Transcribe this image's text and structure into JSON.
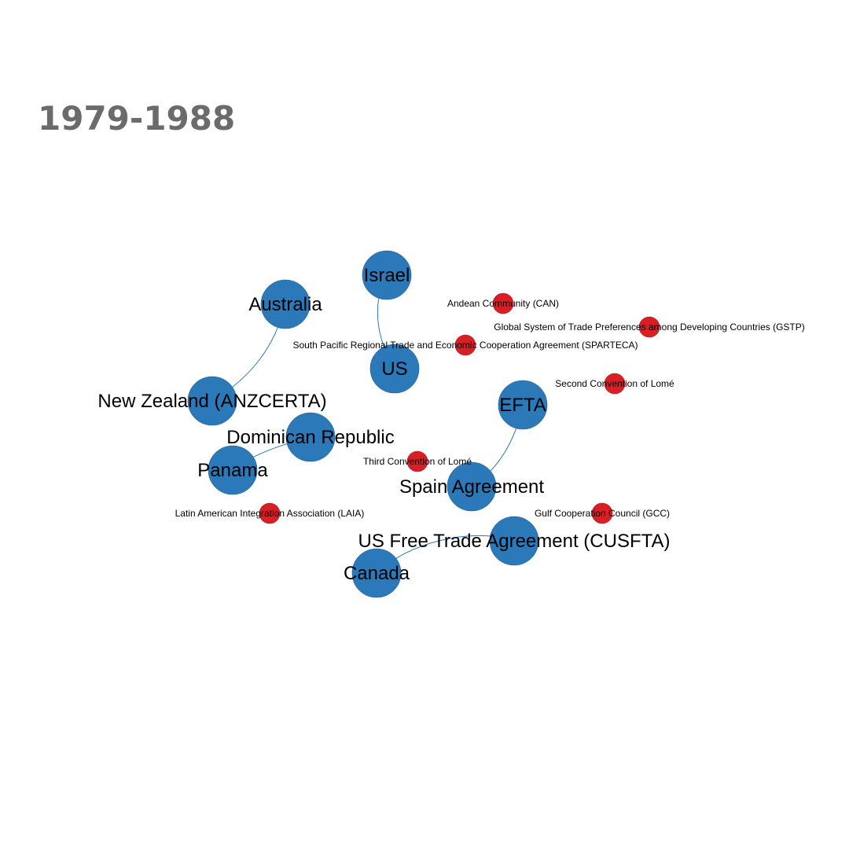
{
  "title": "1979-1988",
  "colors": {
    "big_node": "#2b79b8",
    "small_node": "#d81f26",
    "edge": "#2b79b8",
    "title": "#6b6b6b"
  },
  "nodes": [
    {
      "id": "israel",
      "label": "Israel",
      "kind": "big"
    },
    {
      "id": "australia",
      "label": "Australia",
      "kind": "big"
    },
    {
      "id": "us",
      "label": "US",
      "kind": "big"
    },
    {
      "id": "nz",
      "label": "New Zealand (ANZCERTA)",
      "kind": "big"
    },
    {
      "id": "dr",
      "label": "Dominican Republic",
      "kind": "big"
    },
    {
      "id": "panama",
      "label": "Panama",
      "kind": "big"
    },
    {
      "id": "efta",
      "label": "EFTA",
      "kind": "big"
    },
    {
      "id": "spain",
      "label": "Spain Agreement",
      "kind": "big"
    },
    {
      "id": "cusfta",
      "label": "US Free Trade Agreement (CUSFTA)",
      "kind": "big"
    },
    {
      "id": "canada",
      "label": "Canada",
      "kind": "big"
    },
    {
      "id": "can",
      "label": "Andean Community (CAN)",
      "kind": "small"
    },
    {
      "id": "gstp",
      "label": "Global System of Trade Preferences among Developing Countries (GSTP)",
      "kind": "small"
    },
    {
      "id": "sparteca",
      "label": "South Pacific Regional Trade and Economic Cooperation Agreement (SPARTECA)",
      "kind": "small"
    },
    {
      "id": "lome2",
      "label": "Second Convention of Lomé",
      "kind": "small"
    },
    {
      "id": "lome3",
      "label": "Third Convention of Lomé",
      "kind": "small"
    },
    {
      "id": "laia",
      "label": "Latin American Integration Association (LAIA)",
      "kind": "small"
    },
    {
      "id": "gcc",
      "label": "Gulf Cooperation Council (GCC)",
      "kind": "small"
    }
  ],
  "edges": [
    {
      "from": "israel",
      "to": "us"
    },
    {
      "from": "australia",
      "to": "nz"
    },
    {
      "from": "dr",
      "to": "panama"
    },
    {
      "from": "efta",
      "to": "spain"
    },
    {
      "from": "cusfta",
      "to": "canada"
    }
  ]
}
